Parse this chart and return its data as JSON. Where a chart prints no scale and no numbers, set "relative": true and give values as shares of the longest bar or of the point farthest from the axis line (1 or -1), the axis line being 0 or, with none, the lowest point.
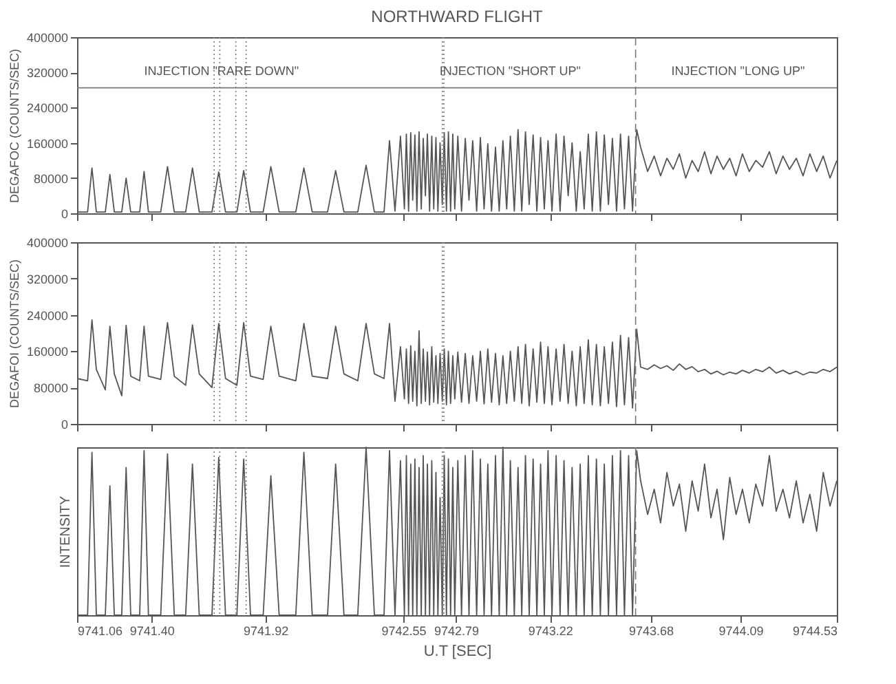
{
  "chart_data": [
    {
      "type": "line",
      "title": "NORTHWARD FLIGHT",
      "ylabel": "DEGAFOC (COUNTS/SEC)",
      "x": [
        9741.06,
        9741.108,
        9741.128,
        9741.148,
        9741.189,
        9741.21,
        9741.23,
        9741.264,
        9741.284,
        9741.305,
        9741.346,
        9741.366,
        9741.386,
        9741.442,
        9741.473,
        9741.504,
        9741.556,
        9741.587,
        9741.618,
        9741.676,
        9741.707,
        9741.738,
        9741.79,
        9741.821,
        9741.852,
        9741.91,
        9741.945,
        9741.983,
        9742.059,
        9742.096,
        9742.134,
        9742.204,
        9742.241,
        9742.279,
        9742.342,
        9742.38,
        9742.418,
        9742.462,
        9742.487,
        9742.512,
        9742.537,
        9742.555,
        9742.564,
        9742.574,
        9742.584,
        9742.593,
        9742.603,
        9742.612,
        9742.622,
        9742.632,
        9742.641,
        9742.651,
        9742.66,
        9742.67,
        9742.68,
        9742.689,
        9742.699,
        9742.708,
        9742.718,
        9742.728,
        9742.737,
        9742.747,
        9742.756,
        9742.766,
        9742.776,
        9742.785,
        9742.799,
        9742.816,
        9742.833,
        9742.85,
        9742.867,
        9742.885,
        9742.902,
        9742.919,
        9742.936,
        9742.953,
        9742.971,
        9742.988,
        9743.005,
        9743.022,
        9743.039,
        9743.057,
        9743.074,
        9743.091,
        9743.108,
        9743.125,
        9743.143,
        9743.16,
        9743.177,
        9743.194,
        9743.211,
        9743.229,
        9743.248,
        9743.266,
        9743.284,
        9743.303,
        9743.321,
        9743.34,
        9743.358,
        9743.376,
        9743.395,
        9743.413,
        9743.432,
        9743.45,
        9743.468,
        9743.487,
        9743.505,
        9743.524,
        9743.542,
        9743.56,
        9743.579,
        9743.597,
        9743.616,
        9743.634,
        9743.666,
        9743.696,
        9743.725,
        9743.754,
        9743.783,
        9743.811,
        9743.84,
        9743.869,
        9743.897,
        9743.926,
        9743.955,
        9743.983,
        9744.012,
        9744.041,
        9744.07,
        9744.099,
        9744.13,
        9744.16,
        9744.191,
        9744.222,
        9744.253,
        9744.284,
        9744.314,
        9744.345,
        9744.376,
        9744.407,
        9744.438,
        9744.468,
        9744.499,
        9744.53
      ],
      "series": [
        {
          "color": "#555555",
          "values": [
            3000,
            3000,
            103000,
            3000,
            3000,
            88000,
            3000,
            3000,
            80000,
            3000,
            3000,
            95000,
            3000,
            3000,
            106000,
            3000,
            3000,
            103000,
            3000,
            3000,
            94000,
            3000,
            3000,
            97000,
            3000,
            3000,
            106000,
            3000,
            3000,
            103000,
            3000,
            3000,
            97000,
            3000,
            3000,
            109000,
            3000,
            3000,
            165000,
            5000,
            175000,
            10000,
            180000,
            5000,
            183000,
            30000,
            178000,
            5000,
            185000,
            10000,
            170000,
            40000,
            180000,
            5000,
            175000,
            10000,
            172000,
            5000,
            160000,
            20000,
            183000,
            5000,
            185000,
            5000,
            180000,
            10000,
            175000,
            5000,
            170000,
            30000,
            165000,
            5000,
            172000,
            10000,
            158000,
            5000,
            150000,
            5000,
            165000,
            10000,
            175000,
            5000,
            190000,
            5000,
            185000,
            20000,
            178000,
            5000,
            172000,
            10000,
            165000,
            5000,
            180000,
            5000,
            175000,
            40000,
            160000,
            5000,
            140000,
            10000,
            180000,
            5000,
            185000,
            5000,
            178000,
            20000,
            170000,
            5000,
            180000,
            10000,
            175000,
            5000,
            190000,
            150000,
            95000,
            130000,
            85000,
            125000,
            100000,
            135000,
            80000,
            120000,
            95000,
            140000,
            90000,
            130000,
            100000,
            125000,
            85000,
            135000,
            95000,
            120000,
            105000,
            140000,
            90000,
            130000,
            100000,
            125000,
            85000,
            135000,
            95000,
            130000,
            80000,
            120000
          ]
        }
      ],
      "xlim": [
        9741.06,
        9744.53
      ],
      "xticks": [
        9741.06,
        9741.4,
        9741.92,
        9742.55,
        9742.79,
        9743.22,
        9743.68,
        9744.09,
        9744.53
      ],
      "ylim": [
        0,
        400000
      ],
      "yticks": [
        0,
        80000,
        160000,
        240000,
        320000,
        400000
      ],
      "tick_labels": "y",
      "ref_lines": [
        {
          "axis": "y",
          "value": 285000,
          "line_style": "solid"
        },
        {
          "axis": "x",
          "value": 9741.686,
          "line_style": "dotted"
        },
        {
          "axis": "x",
          "value": 9741.712,
          "line_style": "dotted"
        },
        {
          "axis": "x",
          "value": 9741.785,
          "line_style": "dotted"
        },
        {
          "axis": "x",
          "value": 9741.832,
          "line_style": "dotted"
        },
        {
          "axis": "x",
          "value": 9742.728,
          "line_style": "dotted"
        },
        {
          "axis": "x",
          "value": 9742.735,
          "line_style": "dotted"
        },
        {
          "axis": "x",
          "value": 9743.611,
          "line_style": "dashed"
        }
      ],
      "annotations": [
        "INJECTION \"RARE DOWN\"",
        "INJECTION \"SHORT UP\"",
        "INJECTION \"LONG UP\""
      ]
    },
    {
      "type": "line",
      "ylabel": "DEGAFOI (COUNTS/SEC)",
      "x": [
        9741.06,
        9741.108,
        9741.128,
        9741.148,
        9741.189,
        9741.21,
        9741.23,
        9741.264,
        9741.284,
        9741.305,
        9741.346,
        9741.366,
        9741.386,
        9741.442,
        9741.473,
        9741.504,
        9741.556,
        9741.587,
        9741.618,
        9741.676,
        9741.707,
        9741.738,
        9741.79,
        9741.821,
        9741.852,
        9741.91,
        9741.945,
        9741.983,
        9742.059,
        9742.096,
        9742.134,
        9742.204,
        9742.241,
        9742.279,
        9742.342,
        9742.38,
        9742.418,
        9742.462,
        9742.487,
        9742.512,
        9742.537,
        9742.555,
        9742.564,
        9742.574,
        9742.584,
        9742.593,
        9742.603,
        9742.612,
        9742.622,
        9742.632,
        9742.641,
        9742.651,
        9742.66,
        9742.67,
        9742.68,
        9742.689,
        9742.699,
        9742.708,
        9742.718,
        9742.728,
        9742.737,
        9742.747,
        9742.756,
        9742.766,
        9742.776,
        9742.785,
        9742.799,
        9742.816,
        9742.833,
        9742.85,
        9742.867,
        9742.885,
        9742.902,
        9742.919,
        9742.936,
        9742.953,
        9742.971,
        9742.988,
        9743.005,
        9743.022,
        9743.039,
        9743.057,
        9743.074,
        9743.091,
        9743.108,
        9743.125,
        9743.143,
        9743.16,
        9743.177,
        9743.194,
        9743.211,
        9743.229,
        9743.248,
        9743.266,
        9743.284,
        9743.303,
        9743.321,
        9743.34,
        9743.358,
        9743.376,
        9743.395,
        9743.413,
        9743.432,
        9743.45,
        9743.468,
        9743.487,
        9743.505,
        9743.524,
        9743.542,
        9743.56,
        9743.579,
        9743.597,
        9743.616,
        9743.634,
        9743.666,
        9743.696,
        9743.725,
        9743.754,
        9743.783,
        9743.811,
        9743.84,
        9743.869,
        9743.897,
        9743.926,
        9743.955,
        9743.983,
        9744.012,
        9744.041,
        9744.07,
        9744.099,
        9744.13,
        9744.16,
        9744.191,
        9744.222,
        9744.253,
        9744.284,
        9744.314,
        9744.345,
        9744.376,
        9744.407,
        9744.438,
        9744.468,
        9744.499,
        9744.53
      ],
      "series": [
        {
          "color": "#555555",
          "values": [
            100000,
            95000,
            229000,
            120000,
            75000,
            215000,
            110000,
            62000,
            217000,
            105000,
            95000,
            215000,
            105000,
            98000,
            223000,
            105000,
            85000,
            218000,
            110000,
            80000,
            221000,
            100000,
            85000,
            223000,
            105000,
            98000,
            215000,
            105000,
            95000,
            221000,
            105000,
            100000,
            215000,
            110000,
            95000,
            221000,
            110000,
            100000,
            221000,
            50000,
            170000,
            55000,
            165000,
            45000,
            172000,
            50000,
            160000,
            40000,
            205000,
            45000,
            165000,
            50000,
            158000,
            42000,
            170000,
            48000,
            150000,
            45000,
            155000,
            50000,
            165000,
            42000,
            160000,
            45000,
            150000,
            55000,
            158000,
            48000,
            155000,
            45000,
            150000,
            50000,
            160000,
            44000,
            165000,
            48000,
            155000,
            42000,
            150000,
            45000,
            160000,
            50000,
            170000,
            45000,
            175000,
            40000,
            165000,
            48000,
            180000,
            45000,
            170000,
            42000,
            165000,
            50000,
            175000,
            45000,
            160000,
            40000,
            170000,
            45000,
            185000,
            42000,
            175000,
            40000,
            170000,
            45000,
            180000,
            38000,
            195000,
            42000,
            190000,
            35000,
            209000,
            125000,
            120000,
            130000,
            122000,
            128000,
            118000,
            132000,
            120000,
            126000,
            115000,
            120000,
            110000,
            116000,
            108000,
            114000,
            110000,
            118000,
            112000,
            120000,
            115000,
            125000,
            112000,
            118000,
            110000,
            116000,
            108000,
            114000,
            112000,
            120000,
            115000,
            125000
          ]
        }
      ],
      "xlim": [
        9741.06,
        9744.53
      ],
      "xticks": [
        9741.06,
        9741.4,
        9741.92,
        9742.55,
        9742.79,
        9743.22,
        9743.68,
        9744.09,
        9744.53
      ],
      "ylim": [
        0,
        400000
      ],
      "yticks": [
        0,
        80000,
        160000,
        240000,
        320000,
        400000
      ],
      "tick_labels": "y",
      "ref_lines": [
        {
          "axis": "x",
          "value": 9741.686,
          "line_style": "dotted"
        },
        {
          "axis": "x",
          "value": 9741.712,
          "line_style": "dotted"
        },
        {
          "axis": "x",
          "value": 9741.785,
          "line_style": "dotted"
        },
        {
          "axis": "x",
          "value": 9741.832,
          "line_style": "dotted"
        },
        {
          "axis": "x",
          "value": 9742.728,
          "line_style": "dotted"
        },
        {
          "axis": "x",
          "value": 9742.735,
          "line_style": "dotted"
        },
        {
          "axis": "x",
          "value": 9743.611,
          "line_style": "dashed"
        }
      ]
    },
    {
      "type": "line",
      "ylabel": "INTENSITY",
      "xlabel": "U.T [SEC]",
      "relative": true,
      "x": [
        9741.06,
        9741.108,
        9741.128,
        9741.148,
        9741.189,
        9741.21,
        9741.23,
        9741.264,
        9741.284,
        9741.305,
        9741.346,
        9741.366,
        9741.386,
        9741.442,
        9741.473,
        9741.504,
        9741.556,
        9741.587,
        9741.618,
        9741.676,
        9741.707,
        9741.738,
        9741.79,
        9741.821,
        9741.852,
        9741.91,
        9741.945,
        9741.983,
        9742.059,
        9742.096,
        9742.134,
        9742.204,
        9742.241,
        9742.279,
        9742.342,
        9742.38,
        9742.418,
        9742.462,
        9742.487,
        9742.512,
        9742.537,
        9742.555,
        9742.564,
        9742.574,
        9742.584,
        9742.593,
        9742.603,
        9742.612,
        9742.622,
        9742.632,
        9742.641,
        9742.651,
        9742.66,
        9742.67,
        9742.68,
        9742.689,
        9742.699,
        9742.708,
        9742.718,
        9742.728,
        9742.737,
        9742.747,
        9742.756,
        9742.766,
        9742.776,
        9742.785,
        9742.799,
        9742.816,
        9742.833,
        9742.85,
        9742.867,
        9742.885,
        9742.902,
        9742.919,
        9742.936,
        9742.953,
        9742.971,
        9742.988,
        9743.005,
        9743.022,
        9743.039,
        9743.057,
        9743.074,
        9743.091,
        9743.108,
        9743.125,
        9743.143,
        9743.16,
        9743.177,
        9743.194,
        9743.211,
        9743.229,
        9743.248,
        9743.266,
        9743.284,
        9743.303,
        9743.321,
        9743.34,
        9743.358,
        9743.376,
        9743.395,
        9743.413,
        9743.432,
        9743.45,
        9743.468,
        9743.487,
        9743.505,
        9743.524,
        9743.542,
        9743.56,
        9743.579,
        9743.597,
        9743.616,
        9743.634,
        9743.666,
        9743.696,
        9743.725,
        9743.754,
        9743.783,
        9743.811,
        9743.84,
        9743.869,
        9743.897,
        9743.926,
        9743.955,
        9743.983,
        9744.012,
        9744.041,
        9744.07,
        9744.099,
        9744.13,
        9744.16,
        9744.191,
        9744.222,
        9744.253,
        9744.284,
        9744.314,
        9744.345,
        9744.376,
        9744.407,
        9744.438,
        9744.468,
        9744.499,
        9744.53
      ],
      "series": [
        {
          "color": "#555555",
          "values": [
            0,
            0,
            0.97,
            0,
            0,
            0.77,
            0,
            0,
            0.88,
            0,
            0,
            0.98,
            0,
            0,
            0.96,
            0,
            0,
            0.9,
            0,
            0,
            0.94,
            0,
            0,
            0.93,
            0,
            0,
            0.83,
            0,
            0,
            0.97,
            0,
            0,
            0.9,
            0,
            0,
            1.0,
            0,
            0,
            0.98,
            0,
            0.92,
            0,
            0.95,
            0,
            0.9,
            0,
            0.93,
            0,
            0.88,
            0,
            0.95,
            0,
            0.9,
            0,
            0.92,
            0,
            0.85,
            0,
            0.7,
            0,
            0.95,
            0,
            0.93,
            0,
            0.88,
            0,
            0.92,
            0,
            0.95,
            0,
            0.98,
            0,
            0.93,
            0,
            0.9,
            0,
            0.95,
            0,
            1.0,
            0,
            0.92,
            0,
            0.88,
            0,
            0.95,
            0,
            0.93,
            0,
            0.9,
            0,
            0.98,
            0,
            0.95,
            0,
            0.92,
            0,
            0.88,
            0,
            0.9,
            0,
            0.95,
            0,
            0.93,
            0,
            0.9,
            0,
            0.95,
            0,
            0.98,
            0,
            0.95,
            0,
            0.98,
            0.8,
            0.6,
            0.75,
            0.55,
            0.85,
            0.65,
            0.78,
            0.5,
            0.8,
            0.62,
            0.9,
            0.58,
            0.75,
            0.45,
            0.82,
            0.6,
            0.75,
            0.55,
            0.78,
            0.65,
            0.95,
            0.62,
            0.75,
            0.58,
            0.8,
            0.55,
            0.72,
            0.5,
            0.85,
            0.65,
            0.8
          ]
        }
      ],
      "xlim": [
        9741.06,
        9744.53
      ],
      "xticks": [
        9741.06,
        {
          "value": 9741.4,
          "label": "9741.40"
        },
        9741.92,
        9742.55,
        9742.79,
        9743.22,
        9743.68,
        9744.09,
        9744.53
      ],
      "tick_labels": "x",
      "ref_lines": [
        {
          "axis": "x",
          "value": 9741.686,
          "line_style": "dotted"
        },
        {
          "axis": "x",
          "value": 9741.712,
          "line_style": "dotted"
        },
        {
          "axis": "x",
          "value": 9741.785,
          "line_style": "dotted"
        },
        {
          "axis": "x",
          "value": 9741.832,
          "line_style": "dotted"
        },
        {
          "axis": "x",
          "value": 9742.728,
          "line_style": "dotted"
        },
        {
          "axis": "x",
          "value": 9742.735,
          "line_style": "dotted"
        },
        {
          "axis": "x",
          "value": 9743.611,
          "line_style": "dashed"
        }
      ]
    }
  ]
}
